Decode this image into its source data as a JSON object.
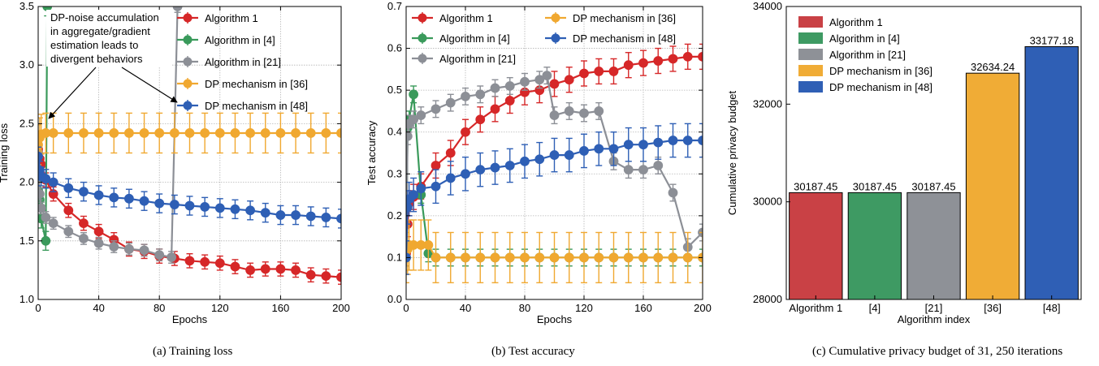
{
  "chart_data": [
    {
      "type": "line",
      "caption": "(a) Training loss",
      "xlabel": "Epochs",
      "ylabel": "Training loss",
      "xlim": [
        0,
        200
      ],
      "ylim": [
        1.0,
        3.5
      ],
      "xticks": [
        "0",
        "40",
        "80",
        "120",
        "160",
        "200"
      ],
      "yticks": [
        "1.0",
        "1.5",
        "2.0",
        "2.5",
        "3.0",
        "3.5"
      ],
      "grid": true,
      "legend": "right",
      "annotation": [
        "DP-noise accumulation",
        "in aggregate/gradient",
        "estimation leads to",
        "divergent behaviors"
      ],
      "series": [
        {
          "name": "Algorithm 1",
          "color": "#d62728",
          "x": [
            0,
            1,
            2,
            5,
            10,
            20,
            30,
            40,
            50,
            60,
            70,
            80,
            90,
            100,
            110,
            120,
            130,
            140,
            150,
            160,
            170,
            180,
            190,
            200
          ],
          "y": [
            2.28,
            2.2,
            2.15,
            2.02,
            1.9,
            1.76,
            1.65,
            1.58,
            1.51,
            1.43,
            1.41,
            1.37,
            1.35,
            1.33,
            1.32,
            1.31,
            1.28,
            1.25,
            1.26,
            1.26,
            1.25,
            1.21,
            1.2,
            1.19
          ],
          "err": 0.06
        },
        {
          "name": "Algorithm in [4]",
          "color": "#3a9a5b",
          "x": [
            0,
            1,
            2,
            5,
            6
          ],
          "y": [
            1.93,
            1.85,
            1.69,
            1.5,
            3.5
          ],
          "err": 0.08
        },
        {
          "name": "Algorithm in [21]",
          "color": "#8c8f96",
          "x": [
            0,
            1,
            2,
            5,
            10,
            20,
            30,
            40,
            50,
            60,
            70,
            80,
            88,
            92
          ],
          "y": [
            2.25,
            1.9,
            1.78,
            1.7,
            1.65,
            1.58,
            1.52,
            1.48,
            1.45,
            1.43,
            1.42,
            1.38,
            1.36,
            3.5
          ],
          "err": 0.05
        },
        {
          "name": "DP mechanism in [36]",
          "color": "#f0a830",
          "x": [
            0,
            1,
            2,
            5,
            10,
            20,
            30,
            40,
            50,
            60,
            70,
            80,
            90,
            100,
            110,
            120,
            130,
            140,
            150,
            160,
            170,
            180,
            190,
            200
          ],
          "y": [
            2.32,
            2.38,
            2.41,
            2.42,
            2.42,
            2.42,
            2.42,
            2.42,
            2.42,
            2.42,
            2.42,
            2.42,
            2.42,
            2.42,
            2.42,
            2.42,
            2.42,
            2.42,
            2.42,
            2.42,
            2.42,
            2.42,
            2.42,
            2.42
          ],
          "err": 0.17
        },
        {
          "name": "DP mechanism in [48]",
          "color": "#2e5fb5",
          "x": [
            0,
            1,
            2,
            5,
            10,
            20,
            30,
            40,
            50,
            60,
            70,
            80,
            90,
            100,
            110,
            120,
            130,
            140,
            150,
            160,
            170,
            180,
            190,
            200
          ],
          "y": [
            2.22,
            2.1,
            2.05,
            2.03,
            2.0,
            1.95,
            1.92,
            1.89,
            1.87,
            1.86,
            1.84,
            1.82,
            1.81,
            1.8,
            1.79,
            1.78,
            1.77,
            1.76,
            1.74,
            1.72,
            1.72,
            1.71,
            1.7,
            1.69
          ],
          "err": 0.08
        }
      ]
    },
    {
      "type": "line",
      "caption": "(b) Test accuracy",
      "xlabel": "Epochs",
      "ylabel": "Test accuracy",
      "xlim": [
        0,
        200
      ],
      "ylim": [
        0.0,
        0.7
      ],
      "xticks": [
        "0",
        "40",
        "80",
        "120",
        "160",
        "200"
      ],
      "yticks": [
        "0.0",
        "0.1",
        "0.2",
        "0.3",
        "0.4",
        "0.5",
        "0.6",
        "0.7"
      ],
      "grid": true,
      "legend": "top",
      "series": [
        {
          "name": "Algorithm 1",
          "color": "#d62728",
          "x": [
            0,
            1,
            2,
            5,
            10,
            20,
            30,
            40,
            50,
            60,
            70,
            80,
            90,
            100,
            110,
            120,
            130,
            140,
            150,
            160,
            170,
            180,
            190,
            200
          ],
          "y": [
            0.11,
            0.18,
            0.23,
            0.245,
            0.27,
            0.32,
            0.35,
            0.4,
            0.43,
            0.455,
            0.475,
            0.495,
            0.5,
            0.515,
            0.525,
            0.54,
            0.545,
            0.545,
            0.56,
            0.565,
            0.57,
            0.575,
            0.58,
            0.58
          ],
          "err": 0.03
        },
        {
          "name": "Algorithm in [4]",
          "color": "#3a9a5b",
          "x": [
            0,
            1,
            2,
            5,
            10,
            15,
            20,
            30,
            40,
            50,
            60,
            70,
            80,
            90,
            100,
            110,
            120,
            130,
            140,
            150,
            160,
            170,
            180,
            190,
            200
          ],
          "y": [
            0.1,
            0.41,
            0.43,
            0.49,
            0.25,
            0.11,
            0.1,
            0.1,
            0.1,
            0.1,
            0.1,
            0.1,
            0.1,
            0.1,
            0.1,
            0.1,
            0.1,
            0.1,
            0.1,
            0.1,
            0.1,
            0.1,
            0.1,
            0.1,
            0.1
          ],
          "err": 0.02
        },
        {
          "name": "Algorithm in [21]",
          "color": "#8c8f96",
          "x": [
            0,
            1,
            2,
            5,
            10,
            20,
            30,
            40,
            50,
            60,
            70,
            80,
            90,
            95,
            100,
            110,
            120,
            130,
            140,
            150,
            160,
            170,
            180,
            190,
            200
          ],
          "y": [
            0.1,
            0.39,
            0.42,
            0.43,
            0.44,
            0.455,
            0.47,
            0.485,
            0.49,
            0.505,
            0.51,
            0.52,
            0.525,
            0.535,
            0.44,
            0.45,
            0.445,
            0.45,
            0.33,
            0.31,
            0.31,
            0.32,
            0.255,
            0.125,
            0.16
          ],
          "err": 0.02
        },
        {
          "name": "DP mechanism in [36]",
          "color": "#f0a830",
          "x": [
            0,
            1,
            2,
            5,
            10,
            15,
            20,
            30,
            40,
            50,
            60,
            70,
            80,
            90,
            100,
            110,
            120,
            130,
            140,
            150,
            160,
            170,
            180,
            190,
            200
          ],
          "y": [
            0.1,
            0.12,
            0.13,
            0.13,
            0.13,
            0.13,
            0.1,
            0.1,
            0.1,
            0.1,
            0.1,
            0.1,
            0.1,
            0.1,
            0.1,
            0.1,
            0.1,
            0.1,
            0.1,
            0.1,
            0.1,
            0.1,
            0.1,
            0.1,
            0.1
          ],
          "err": 0.06
        },
        {
          "name": "DP mechanism in [48]",
          "color": "#2e5fb5",
          "x": [
            0,
            1,
            2,
            5,
            10,
            20,
            30,
            40,
            50,
            60,
            70,
            80,
            90,
            100,
            110,
            120,
            130,
            140,
            150,
            160,
            170,
            180,
            190,
            200
          ],
          "y": [
            0.1,
            0.22,
            0.24,
            0.25,
            0.265,
            0.27,
            0.29,
            0.3,
            0.31,
            0.315,
            0.32,
            0.33,
            0.335,
            0.345,
            0.345,
            0.355,
            0.36,
            0.36,
            0.37,
            0.37,
            0.375,
            0.38,
            0.38,
            0.38
          ],
          "err": 0.04
        }
      ]
    },
    {
      "type": "bar",
      "caption": "(c) Cumulative privacy budget of 31, 250 iterations",
      "xlabel": "Algorithm index",
      "ylabel": "Cumulative privacy budget",
      "ylim": [
        28000,
        34000
      ],
      "yticks": [
        "28000",
        "30000",
        "32000",
        "34000"
      ],
      "categories": [
        "Algorithm 1",
        "[4]",
        "[21]",
        "[36]",
        "[48]"
      ],
      "values": [
        30187.45,
        30187.45,
        30187.45,
        32634.24,
        33177.18
      ],
      "value_labels": [
        "30187.45",
        "30187.45",
        "30187.45",
        "32634.24",
        "33177.18"
      ],
      "colors": [
        "#c94145",
        "#3e9a63",
        "#8e9197",
        "#f0ac36",
        "#2f5fb5"
      ],
      "legend": "top-left",
      "legend_entries": [
        "Algorithm 1",
        "Algorithm in [4]",
        "Algorithm in [21]",
        "DP mechanism in [36]",
        "DP mechanism in [48]"
      ]
    }
  ]
}
